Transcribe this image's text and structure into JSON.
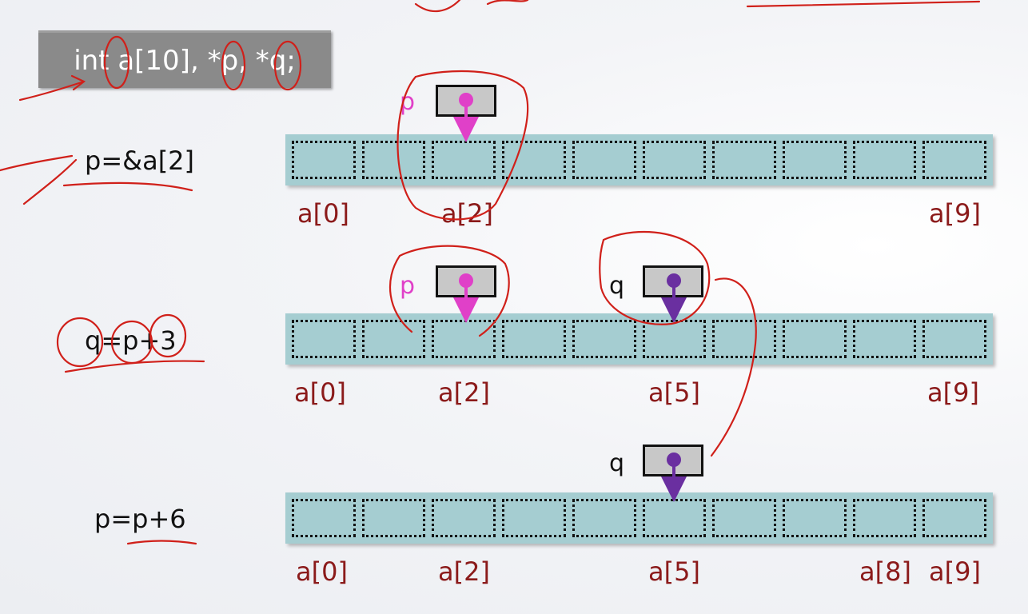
{
  "declaration": "int a[10], *p, *q;",
  "statements": [
    "p=&a[2]",
    "q=p+3",
    "p=p+6"
  ],
  "array_cells": 10,
  "rows": [
    {
      "labels": [
        "a[0]",
        "a[2]",
        "a[9]"
      ]
    },
    {
      "labels": [
        "a[0]",
        "a[2]",
        "a[5]",
        "a[9]"
      ]
    },
    {
      "labels": [
        "a[0]",
        "a[2]",
        "a[5]",
        "a[8]",
        "a[9]"
      ]
    }
  ],
  "pointers": {
    "p": "p",
    "q": "q"
  },
  "colors": {
    "p": "#e040c8",
    "q": "#6a2fa0",
    "annotation": "#d0201a",
    "index_label": "#8b1a1a",
    "array": "#a5cdd1"
  }
}
